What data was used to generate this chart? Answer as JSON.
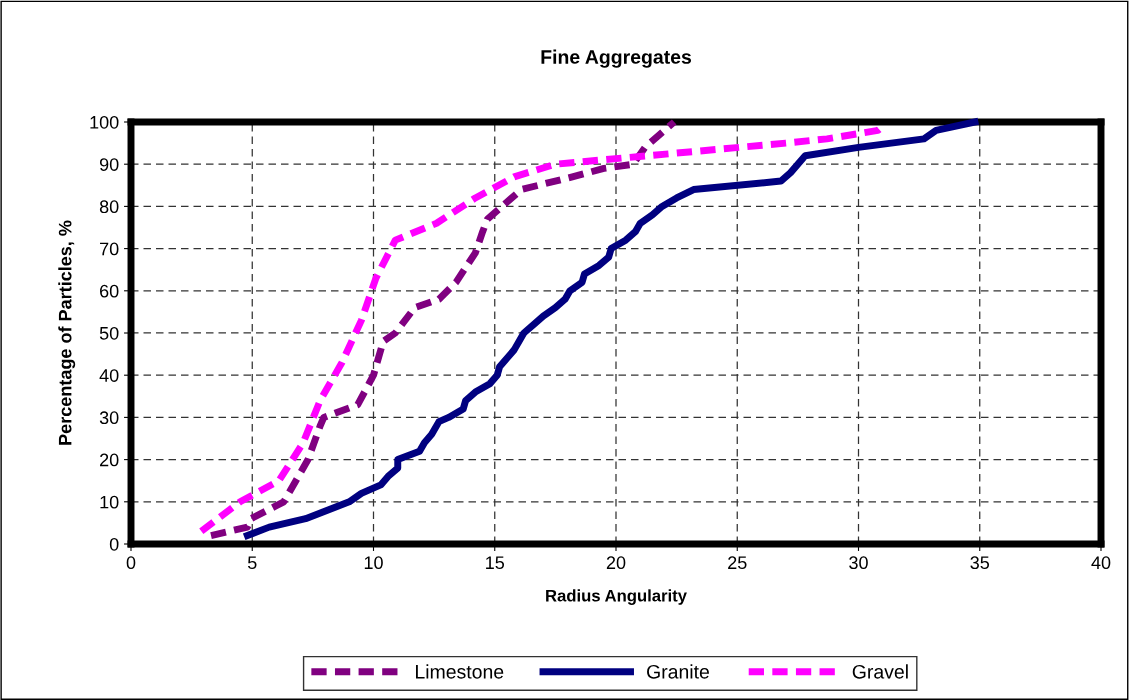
{
  "chart_data": {
    "type": "line",
    "title": "Fine Aggregates",
    "xlabel": "Radius Angularity",
    "ylabel": "Percentage of Particles, %",
    "xlim": [
      0,
      40
    ],
    "xticks": [
      0,
      5,
      10,
      15,
      20,
      25,
      30,
      35,
      40
    ],
    "ylim": [
      0,
      100
    ],
    "yticks": [
      0,
      10,
      20,
      30,
      40,
      50,
      60,
      70,
      80,
      90,
      100
    ],
    "grid": true,
    "legend": "bottom",
    "marker": "none",
    "series": [
      {
        "name": "Limestone",
        "color": "#800080",
        "line_style": "dashed",
        "x": [
          3.3,
          4.8,
          4.95,
          6.3,
          6.8,
          7.3,
          7.8,
          7.95,
          9.35,
          10.0,
          10.2,
          10.4,
          10.9,
          11.7,
          12.7,
          13.4,
          14.2,
          14.5,
          14.7,
          15.1,
          16.1,
          18.2,
          19.5,
          20.7,
          21.2,
          22.4
        ],
        "values": [
          2,
          4,
          6,
          10,
          15,
          20,
          28,
          30,
          33,
          40,
          44,
          48,
          50,
          56,
          58,
          62,
          69,
          74,
          77,
          79,
          84,
          87,
          89,
          90,
          94,
          100
        ]
      },
      {
        "name": "Granite",
        "color": "#000080",
        "line_style": "solid",
        "x": [
          4.8,
          5.7,
          7.2,
          9,
          9.5,
          10.3,
          10.6,
          11,
          11,
          11.9,
          12.1,
          12.4,
          12.7,
          13.1,
          13.7,
          13.8,
          14.2,
          14.8,
          15.1,
          15.2,
          15.8,
          16.2,
          16.6,
          17,
          17.5,
          17.9,
          18.1,
          18.6,
          18.7,
          19.3,
          19.7,
          19.8,
          20.4,
          20.8,
          21,
          21.5,
          21.9,
          22.5,
          23.2,
          26.8,
          27.2,
          27.8,
          30,
          32.7,
          33.2,
          34.8
        ],
        "values": [
          2,
          4,
          6,
          10,
          12,
          14,
          16,
          18,
          20,
          22,
          24,
          26,
          29,
          30,
          32,
          34,
          36,
          38,
          40,
          42,
          46,
          50,
          52,
          54,
          56,
          58,
          60,
          62,
          64,
          66,
          68,
          70,
          72,
          74,
          76,
          78,
          80,
          82,
          84,
          86,
          88,
          92,
          94,
          96,
          98,
          100
        ]
      },
      {
        "name": "Gravel",
        "color": "#ff00ff",
        "line_style": "dashed",
        "x": [
          2.9,
          4.5,
          6.1,
          7.1,
          7.8,
          8.7,
          9.5,
          10.1,
          10.9,
          12.6,
          14.2,
          15.8,
          17.5,
          19.4,
          21.3,
          23.2,
          25.1,
          27,
          28.7,
          30.8,
          31
        ],
        "values": [
          3,
          10,
          15,
          24,
          34,
          43,
          53,
          63,
          72,
          76,
          82,
          87,
          90,
          91,
          92,
          93,
          94,
          95,
          96,
          98,
          99
        ]
      }
    ]
  }
}
